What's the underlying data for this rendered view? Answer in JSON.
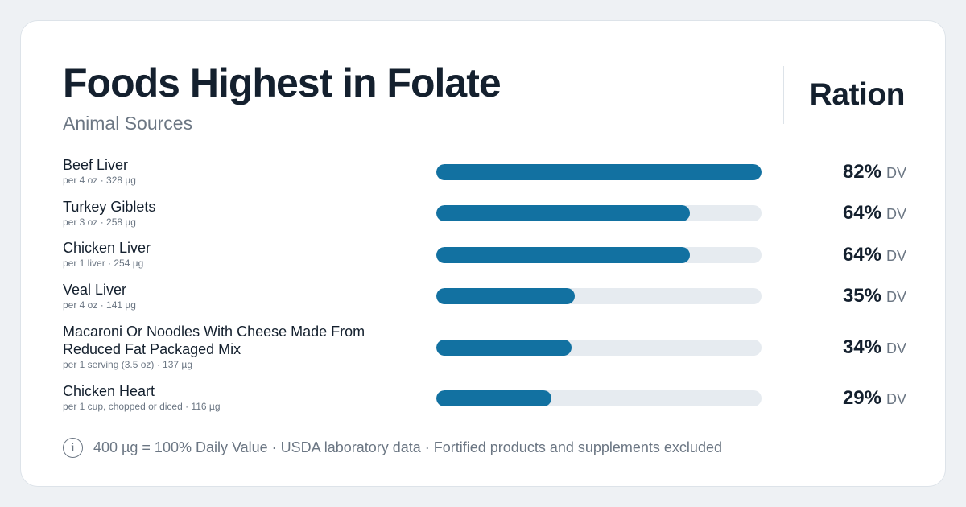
{
  "header": {
    "title": "Foods Highest in Folate",
    "subtitle": "Animal Sources",
    "brand": "Ration"
  },
  "colors": {
    "bar_fill": "#1271a1",
    "bar_track": "#e6ebf0",
    "text_primary": "#14202e",
    "text_muted": "#6b7683"
  },
  "chart_data": {
    "type": "bar",
    "orientation": "horizontal",
    "title": "Foods Highest in Folate",
    "subtitle": "Animal Sources",
    "value_unit": "DV",
    "xlim": [
      0,
      82
    ],
    "categories": [
      "Beef Liver",
      "Turkey Giblets",
      "Chicken Liver",
      "Veal Liver",
      "Macaroni Or Noodles With Cheese Made From Reduced Fat Packaged Mix",
      "Chicken Heart"
    ],
    "values": [
      82,
      64,
      64,
      35,
      34,
      29
    ],
    "rows": [
      {
        "name": "Beef Liver",
        "detail": "per 4 oz · 328 µg",
        "value": 82,
        "label": "82%"
      },
      {
        "name": "Turkey Giblets",
        "detail": "per 3 oz · 258 µg",
        "value": 64,
        "label": "64%"
      },
      {
        "name": "Chicken Liver",
        "detail": "per 1 liver · 254 µg",
        "value": 64,
        "label": "64%"
      },
      {
        "name": "Veal Liver",
        "detail": "per 4 oz · 141 µg",
        "value": 35,
        "label": "35%"
      },
      {
        "name": "Macaroni Or Noodles With Cheese Made From Reduced Fat Packaged Mix",
        "detail": "per 1 serving (3.5 oz) · 137 µg",
        "value": 34,
        "label": "34%"
      },
      {
        "name": "Chicken Heart",
        "detail": "per 1 cup, chopped or diced · 116 µg",
        "value": 29,
        "label": "29%"
      }
    ]
  },
  "footer": {
    "icon": "info-icon",
    "icon_glyph": "i",
    "text": "400 µg = 100% Daily Value · USDA laboratory data · Fortified products and supplements excluded"
  }
}
